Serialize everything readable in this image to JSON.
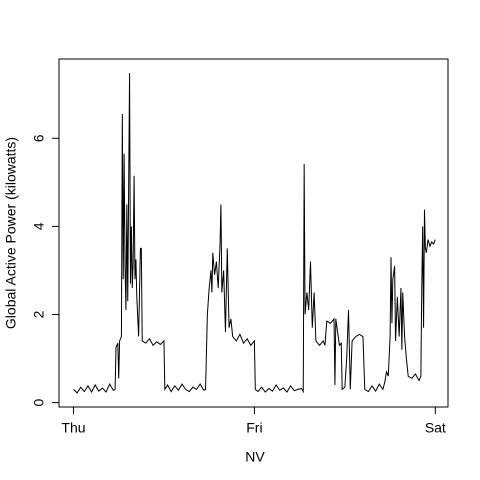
{
  "chart_data": {
    "type": "line",
    "xlabel": "NV",
    "ylabel": "Global Active Power (kilowatts)",
    "color": "#000000",
    "xlim": [
      -0.08,
      2.07
    ],
    "ylim": [
      -0.1,
      7.8
    ],
    "xticks": [
      {
        "value": 0,
        "label": "Thu"
      },
      {
        "value": 1,
        "label": "Fri"
      },
      {
        "value": 2,
        "label": "Sat"
      }
    ],
    "yticks": [
      0,
      2,
      4,
      6
    ],
    "x": [
      0,
      0.02,
      0.04,
      0.06,
      0.08,
      0.1,
      0.12,
      0.14,
      0.16,
      0.18,
      0.2,
      0.22,
      0.23,
      0.235,
      0.245,
      0.25,
      0.255,
      0.265,
      0.27,
      0.275,
      0.28,
      0.285,
      0.29,
      0.295,
      0.3,
      0.31,
      0.315,
      0.32,
      0.325,
      0.33,
      0.335,
      0.34,
      0.345,
      0.35,
      0.36,
      0.37,
      0.375,
      0.38,
      0.4,
      0.42,
      0.44,
      0.46,
      0.48,
      0.5,
      0.505,
      0.52,
      0.54,
      0.56,
      0.58,
      0.6,
      0.62,
      0.64,
      0.66,
      0.68,
      0.7,
      0.72,
      0.73,
      0.74,
      0.75,
      0.76,
      0.765,
      0.77,
      0.78,
      0.79,
      0.8,
      0.81,
      0.815,
      0.82,
      0.83,
      0.84,
      0.85,
      0.86,
      0.87,
      0.88,
      0.9,
      0.92,
      0.94,
      0.96,
      0.98,
      1,
      1.005,
      1.02,
      1.04,
      1.06,
      1.08,
      1.1,
      1.12,
      1.14,
      1.16,
      1.18,
      1.2,
      1.22,
      1.24,
      1.26,
      1.27,
      1.275,
      1.28,
      1.29,
      1.3,
      1.31,
      1.32,
      1.33,
      1.34,
      1.36,
      1.38,
      1.39,
      1.4,
      1.42,
      1.44,
      1.445,
      1.45,
      1.47,
      1.48,
      1.485,
      1.5,
      1.51,
      1.52,
      1.53,
      1.54,
      1.56,
      1.58,
      1.6,
      1.61,
      1.63,
      1.65,
      1.67,
      1.69,
      1.71,
      1.72,
      1.73,
      1.74,
      1.75,
      1.755,
      1.76,
      1.765,
      1.775,
      1.78,
      1.79,
      1.8,
      1.81,
      1.815,
      1.82,
      1.83,
      1.84,
      1.85,
      1.87,
      1.89,
      1.91,
      1.92,
      1.925,
      1.93,
      1.935,
      1.94,
      1.945,
      1.95,
      1.96,
      1.97,
      1.98,
      1.99,
      2
    ],
    "values": [
      0.3,
      0.22,
      0.35,
      0.25,
      0.38,
      0.24,
      0.4,
      0.26,
      0.33,
      0.24,
      0.42,
      0.28,
      0.3,
      1.25,
      1.35,
      0.55,
      1.4,
      1.5,
      6.55,
      2.8,
      5.65,
      3.1,
      2.1,
      4.5,
      2.3,
      7.48,
      2.7,
      4,
      2.6,
      3.2,
      5.15,
      2.8,
      3.25,
      2.4,
      1.5,
      3.5,
      3.5,
      1.4,
      1.35,
      1.45,
      1.3,
      1.38,
      1.32,
      1.4,
      0.3,
      0.4,
      0.25,
      0.38,
      0.28,
      0.42,
      0.3,
      0.25,
      0.35,
      0.3,
      0.42,
      0.28,
      0.3,
      2,
      2.6,
      3,
      2.5,
      3.4,
      2.9,
      3.2,
      2.6,
      3.6,
      4.5,
      2.5,
      3,
      1.6,
      3.5,
      1.7,
      1.9,
      1.5,
      1.4,
      1.55,
      1.35,
      1.45,
      1.3,
      1.4,
      0.3,
      0.25,
      0.35,
      0.24,
      0.32,
      0.26,
      0.4,
      0.28,
      0.33,
      0.24,
      0.38,
      0.27,
      0.3,
      0.32,
      0.25,
      5.42,
      2,
      2.5,
      2.1,
      3.2,
      1.7,
      2.5,
      1.4,
      1.3,
      1.4,
      1.3,
      1.85,
      1.8,
      1.9,
      0.4,
      1.9,
      1.3,
      1.35,
      0.3,
      0.35,
      1,
      2.1,
      0.3,
      1.4,
      1.5,
      1.55,
      1.5,
      0.3,
      0.25,
      0.38,
      0.26,
      0.42,
      0.3,
      0.45,
      0.7,
      0.6,
      1.5,
      3.3,
      1.8,
      2.8,
      3.1,
      1.4,
      2.4,
      1.5,
      2.6,
      1.2,
      2.5,
      1.5,
      1,
      0.6,
      0.55,
      0.65,
      0.5,
      0.6,
      2.6,
      4,
      1.7,
      4.38,
      3.5,
      3.4,
      3.7,
      3.55,
      3.65,
      3.6,
      3.7
    ]
  }
}
